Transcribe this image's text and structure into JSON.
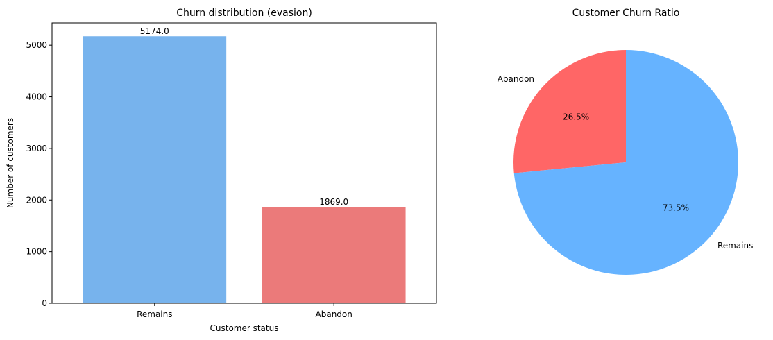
{
  "chart_data": [
    {
      "type": "bar",
      "title": "Churn distribution (evasion)",
      "xlabel": "Customer status",
      "ylabel": "Number of customers",
      "categories": [
        "Remains",
        "Abandon"
      ],
      "values": [
        5174,
        1869
      ],
      "value_labels": [
        "5174.0",
        "1869.0"
      ],
      "colors": [
        "#77b3ed",
        "#eb7a7a"
      ],
      "ylim": [
        0,
        5432.7
      ],
      "yticks": [
        0,
        1000,
        2000,
        3000,
        4000,
        5000
      ],
      "ytick_labels": [
        "0",
        "1000",
        "2000",
        "3000",
        "4000",
        "5000"
      ],
      "grid": false,
      "legend": "none"
    },
    {
      "type": "pie",
      "title": "Customer Churn Ratio",
      "start_angle_deg": 90,
      "slices": [
        {
          "label": "Abandon",
          "value": 1869,
          "pct_label": "26.5%",
          "color": "#ff6666"
        },
        {
          "label": "Remains",
          "value": 5174,
          "pct_label": "73.5%",
          "color": "#66b3ff"
        }
      ]
    }
  ]
}
